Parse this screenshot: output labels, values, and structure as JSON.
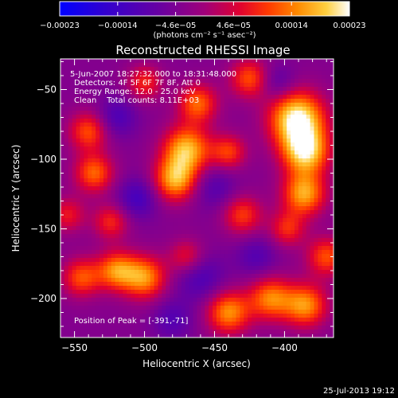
{
  "colorbar": {
    "ticks": [
      "-0.00023",
      "-0.00014",
      "-4.6e-05",
      "4.6e-05",
      "0.00014",
      "0.00023"
    ],
    "unit_label": "(photons cm⁻² s⁻¹ asec⁻²)",
    "colors": [
      "#0000ff",
      "#2a00d5",
      "#5b00a8",
      "#8a0090",
      "#c0005a",
      "#ff0000",
      "#ff6000",
      "#ffa000",
      "#ffe050",
      "#ffffff"
    ]
  },
  "chart_data": {
    "type": "heatmap",
    "title": "Reconstructed RHESSI Image",
    "xlabel": "Heliocentric X (arcsec)",
    "ylabel": "Heliocentric Y (arcsec)",
    "xlim": [
      -560,
      -365
    ],
    "ylim": [
      -228,
      -28
    ],
    "x_ticks": [
      -550,
      -500,
      -450,
      -400
    ],
    "y_ticks": [
      -200,
      -150,
      -100,
      -50
    ],
    "annotations": [
      "5-Jun-2007 18:27:32.000 to 18:31:48.000",
      "Detectors: 4F 5F 6F 7F 8F, Att 0",
      "Energy Range: 12.0 - 25.0 keV",
      "Clean    Total counts: 8.11E+03"
    ],
    "peak_label": "Position of Peak = [-391,-71]",
    "peak": [
      -391,
      -71
    ],
    "sources": [
      {
        "x": -391,
        "y": -71,
        "a": 1.0,
        "s": 14
      },
      {
        "x": -385,
        "y": -95,
        "a": 0.85,
        "s": 12
      },
      {
        "x": -386,
        "y": -125,
        "a": 0.75,
        "s": 11
      },
      {
        "x": -470,
        "y": -93,
        "a": 0.8,
        "s": 12
      },
      {
        "x": -478,
        "y": -115,
        "a": 0.75,
        "s": 11
      },
      {
        "x": -462,
        "y": -60,
        "a": 0.6,
        "s": 10
      },
      {
        "x": -425,
        "y": -42,
        "a": 0.55,
        "s": 10
      },
      {
        "x": -440,
        "y": -95,
        "a": 0.5,
        "s": 9
      },
      {
        "x": -430,
        "y": -140,
        "a": 0.5,
        "s": 10
      },
      {
        "x": -500,
        "y": -185,
        "a": 0.7,
        "s": 11
      },
      {
        "x": -520,
        "y": -180,
        "a": 0.65,
        "s": 10
      },
      {
        "x": -545,
        "y": -185,
        "a": 0.55,
        "s": 10
      },
      {
        "x": -536,
        "y": -110,
        "a": 0.6,
        "s": 10
      },
      {
        "x": -540,
        "y": -80,
        "a": 0.55,
        "s": 10
      },
      {
        "x": -524,
        "y": -145,
        "a": 0.45,
        "s": 9
      },
      {
        "x": -440,
        "y": -210,
        "a": 0.7,
        "s": 11
      },
      {
        "x": -410,
        "y": -200,
        "a": 0.65,
        "s": 11
      },
      {
        "x": -385,
        "y": -205,
        "a": 0.7,
        "s": 11
      },
      {
        "x": -370,
        "y": -170,
        "a": 0.55,
        "s": 10
      },
      {
        "x": -398,
        "y": -150,
        "a": 0.45,
        "s": 9
      },
      {
        "x": -470,
        "y": -170,
        "a": 0.4,
        "s": 9
      },
      {
        "x": -500,
        "y": -45,
        "a": 0.45,
        "s": 9
      },
      {
        "x": -555,
        "y": -140,
        "a": 0.4,
        "s": 9
      },
      {
        "x": -505,
        "y": -128,
        "a": -0.35,
        "s": 10
      },
      {
        "x": -520,
        "y": -70,
        "a": -0.3,
        "s": 10
      },
      {
        "x": -460,
        "y": -185,
        "a": -0.3,
        "s": 12
      },
      {
        "x": -450,
        "y": -120,
        "a": -0.25,
        "s": 11
      },
      {
        "x": -405,
        "y": -45,
        "a": -0.25,
        "s": 9
      },
      {
        "x": -480,
        "y": -215,
        "a": -0.25,
        "s": 10
      },
      {
        "x": -420,
        "y": -170,
        "a": -0.25,
        "s": 10
      }
    ]
  },
  "footer": {
    "timestamp": "25-Jul-2013 19:12"
  }
}
